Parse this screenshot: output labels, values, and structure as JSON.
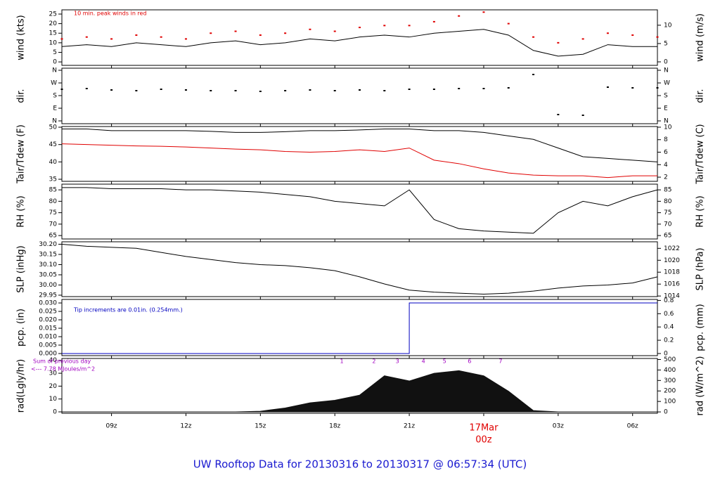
{
  "title": "UW Rooftop Data for 20130316  to  20130317 @ 06:57:34  (UTC)",
  "chart_data": [
    {
      "type": "line",
      "ylabel": "wind (kts)",
      "y2label": "wind (m/s)",
      "annotations": [
        {
          "text": "10 min. peak winds in red",
          "color": "#e00000"
        }
      ],
      "x": [
        7,
        8,
        9,
        10,
        11,
        12,
        13,
        14,
        15,
        16,
        17,
        18,
        19,
        20,
        21,
        22,
        23,
        24,
        25,
        26,
        27,
        28,
        29,
        30,
        31
      ],
      "xlim": [
        7,
        31
      ],
      "ylim": [
        -1.8,
        27.2
      ],
      "yticks": [
        0,
        5,
        10,
        15,
        20,
        25
      ],
      "y2lim": [
        -0.96,
        14.2
      ],
      "y2ticks": [
        0,
        5,
        10
      ],
      "series": [
        {
          "name": "wind",
          "style": "line",
          "color": "#000000",
          "values": [
            8,
            9,
            8,
            10,
            9,
            8,
            10,
            11,
            9,
            10,
            12,
            11,
            13,
            14,
            13,
            15,
            16,
            17,
            14,
            6,
            3,
            4,
            9,
            8,
            8
          ]
        },
        {
          "name": "peak",
          "style": "points",
          "color": "#e00000",
          "values": [
            12,
            13,
            12,
            14,
            13,
            12,
            15,
            16,
            14,
            15,
            17,
            16,
            18,
            19,
            19,
            21,
            24,
            26,
            20,
            13,
            10,
            12,
            15,
            14,
            13
          ]
        }
      ]
    },
    {
      "type": "scatter",
      "ylabel": "dir.",
      "y2label": "dir.",
      "x": [
        7,
        8,
        9,
        10,
        11,
        12,
        13,
        14,
        15,
        16,
        17,
        18,
        19,
        20,
        21,
        22,
        23,
        24,
        25,
        26,
        27,
        28,
        29,
        30,
        31
      ],
      "xlim": [
        7,
        31
      ],
      "ylim": [
        -20,
        375
      ],
      "yticks": [
        {
          "value": 0,
          "label": "N"
        },
        {
          "value": 90,
          "label": "E"
        },
        {
          "value": 180,
          "label": "S"
        },
        {
          "value": 270,
          "label": "W"
        },
        {
          "value": 360,
          "label": "N"
        }
      ],
      "y2lim": [
        -20,
        375
      ],
      "y2ticks": [
        {
          "value": 0,
          "label": "N"
        },
        {
          "value": 90,
          "label": "E"
        },
        {
          "value": 180,
          "label": "S"
        },
        {
          "value": 270,
          "label": "W"
        },
        {
          "value": 360,
          "label": "N"
        }
      ],
      "series": [
        {
          "name": "direction",
          "style": "points",
          "color": "#000000",
          "values": [
            225,
            230,
            220,
            215,
            225,
            220,
            215,
            215,
            210,
            215,
            220,
            215,
            220,
            215,
            225,
            225,
            230,
            230,
            235,
            330,
            45,
            40,
            240,
            235,
            235
          ]
        }
      ]
    },
    {
      "type": "line",
      "ylabel": "Tair/Tdew (F)",
      "y2label": "Tair/Tdew (C)",
      "x": [
        7,
        8,
        9,
        10,
        11,
        12,
        13,
        14,
        15,
        16,
        17,
        18,
        19,
        20,
        21,
        22,
        23,
        24,
        25,
        26,
        27,
        28,
        29,
        30,
        31
      ],
      "xlim": [
        7,
        31
      ],
      "ylim": [
        34.4,
        50.2
      ],
      "yticks": [
        35,
        40,
        45,
        50
      ],
      "y2lim": [
        1.33,
        10.11
      ],
      "y2ticks": [
        2,
        4,
        6,
        8,
        10
      ],
      "series": [
        {
          "name": "Tair",
          "style": "line",
          "color": "#000000",
          "values": [
            49.5,
            49.5,
            49,
            49,
            49,
            49,
            48.8,
            48.5,
            48.5,
            48.7,
            49,
            49,
            49.2,
            49.5,
            49.5,
            49,
            49,
            48.5,
            47.5,
            46.5,
            44,
            41.5,
            41,
            40.5,
            40
          ]
        },
        {
          "name": "Tdew",
          "style": "line",
          "color": "#e00000",
          "values": [
            45.2,
            45,
            44.8,
            44.6,
            44.5,
            44.3,
            44,
            43.7,
            43.5,
            43,
            42.8,
            43,
            43.5,
            43,
            44,
            40.5,
            39.5,
            38,
            36.8,
            36.2,
            36,
            36,
            35.5,
            36,
            36
          ]
        }
      ]
    },
    {
      "type": "line",
      "ylabel": "RH (%)",
      "y2label": "RH (%)",
      "x": [
        7,
        8,
        9,
        10,
        11,
        12,
        13,
        14,
        15,
        16,
        17,
        18,
        19,
        20,
        21,
        22,
        23,
        24,
        25,
        26,
        27,
        28,
        29,
        30,
        31
      ],
      "xlim": [
        7,
        31
      ],
      "ylim": [
        63.5,
        87.5
      ],
      "yticks": [
        65,
        70,
        75,
        80,
        85
      ],
      "y2lim": [
        63.5,
        87.5
      ],
      "y2ticks": [
        65,
        70,
        75,
        80,
        85
      ],
      "series": [
        {
          "name": "RH",
          "style": "line",
          "color": "#000000",
          "values": [
            86,
            86,
            85.5,
            85.5,
            85.5,
            85,
            85,
            84.5,
            84,
            83,
            82,
            80,
            79,
            78,
            85,
            72,
            68,
            67,
            66.5,
            66,
            75,
            80,
            78,
            82,
            85
          ]
        }
      ]
    },
    {
      "type": "line",
      "ylabel": "SLP (inHg)",
      "y2label": "SLP (hPa)",
      "x": [
        7,
        8,
        9,
        10,
        11,
        12,
        13,
        14,
        15,
        16,
        17,
        18,
        19,
        20,
        21,
        22,
        23,
        24,
        25,
        26,
        27,
        28,
        29,
        30,
        31
      ],
      "xlim": [
        7,
        31
      ],
      "ylim": [
        29.943,
        30.212
      ],
      "yticks": [
        29.95,
        {
          "value": 30,
          "label": "30.00"
        },
        30.05,
        {
          "value": 30.1,
          "label": "30.10"
        },
        30.15,
        {
          "value": 30.2,
          "label": "30.20"
        }
      ],
      "y2lim": [
        1013.9,
        1023.1
      ],
      "y2ticks": [
        1014,
        1016,
        1018,
        1020,
        1022
      ],
      "series": [
        {
          "name": "SLP",
          "style": "line",
          "color": "#000000",
          "values": [
            30.2,
            30.19,
            30.185,
            30.18,
            30.16,
            30.14,
            30.125,
            30.11,
            30.1,
            30.095,
            30.085,
            30.07,
            30.04,
            30.005,
            29.975,
            29.965,
            29.96,
            29.955,
            29.96,
            29.97,
            29.985,
            29.995,
            30,
            30.01,
            30.04
          ]
        }
      ]
    },
    {
      "type": "line",
      "ylabel": "pcp. (in)",
      "y2label": "pcp. (mm)",
      "annotations": [
        {
          "text": "Tip increments are 0.01in. (0.254mm.)",
          "color": "#0000c0"
        }
      ],
      "x": [
        7,
        8,
        9,
        10,
        11,
        12,
        13,
        14,
        15,
        16,
        17,
        18,
        19,
        20,
        21,
        22,
        23,
        24,
        25,
        26,
        27,
        28,
        29,
        30,
        31
      ],
      "xlim": [
        7,
        31
      ],
      "ylim": [
        -0.00125,
        0.0321
      ],
      "yticks": [
        {
          "value": 0,
          "label": "0.000"
        },
        0.005,
        {
          "value": 0.01,
          "label": "0.010"
        },
        0.015,
        {
          "value": 0.02,
          "label": "0.020"
        },
        0.025,
        {
          "value": 0.03,
          "label": "0.030"
        }
      ],
      "y2lim": [
        -0.032,
        0.815
      ],
      "y2ticks": [
        0,
        0.2,
        0.4,
        0.6,
        0.8
      ],
      "series": [
        {
          "name": "precip",
          "style": "step",
          "color": "#0000c0",
          "values": [
            0,
            0,
            0,
            0,
            0,
            0,
            0,
            0,
            0,
            0,
            0,
            0,
            0,
            0,
            0.03,
            0.03,
            0.03,
            0.03,
            0.03,
            0.03,
            0.03,
            0.03,
            0.03,
            0.03,
            0.03
          ]
        }
      ]
    },
    {
      "type": "area",
      "ylabel": "rad(Lgly/hr)",
      "y2label": "rad (W/m^2)",
      "notes": [
        "Sum of previous day",
        "<--- 7.78 MJoules/m^2"
      ],
      "hour_marks": [
        {
          "text": "1",
          "x": 18.28
        },
        {
          "text": "2",
          "x": 19.58
        },
        {
          "text": "3",
          "x": 20.52
        },
        {
          "text": "4",
          "x": 21.57
        },
        {
          "text": "5",
          "x": 22.42
        },
        {
          "text": "6",
          "x": 23.43
        },
        {
          "text": "7",
          "x": 24.68
        }
      ],
      "date_label": {
        "text": "17Mar",
        "x": 24
      },
      "x": [
        7,
        8,
        9,
        10,
        11,
        12,
        13,
        14,
        15,
        16,
        17,
        18,
        19,
        20,
        21,
        22,
        23,
        24,
        25,
        26,
        27,
        28,
        29,
        30,
        31
      ],
      "xlim": [
        7,
        31
      ],
      "ylim": [
        -1.1,
        41.5
      ],
      "yticks": [
        0,
        10,
        20,
        30,
        40
      ],
      "y2lim": [
        -13,
        510
      ],
      "y2ticks": [
        0,
        100,
        200,
        300,
        400,
        500
      ],
      "xticks": [
        {
          "value": 9,
          "label": "09z"
        },
        {
          "value": 12,
          "label": "12z"
        },
        {
          "value": 15,
          "label": "15z"
        },
        {
          "value": 18,
          "label": "18z"
        },
        {
          "value": 21,
          "label": "21z"
        },
        {
          "value": 24,
          "label": "00z"
        },
        {
          "value": 27,
          "label": "03z"
        },
        {
          "value": 30,
          "label": "06z"
        }
      ],
      "series": [
        {
          "name": "radiation",
          "style": "area",
          "color": "#111111",
          "values": [
            0,
            0,
            0,
            0,
            0,
            0,
            0,
            0,
            0.5,
            3,
            7,
            9,
            13,
            28,
            24,
            30,
            32,
            28,
            16,
            1,
            0,
            0,
            0,
            0,
            0
          ]
        }
      ]
    }
  ]
}
